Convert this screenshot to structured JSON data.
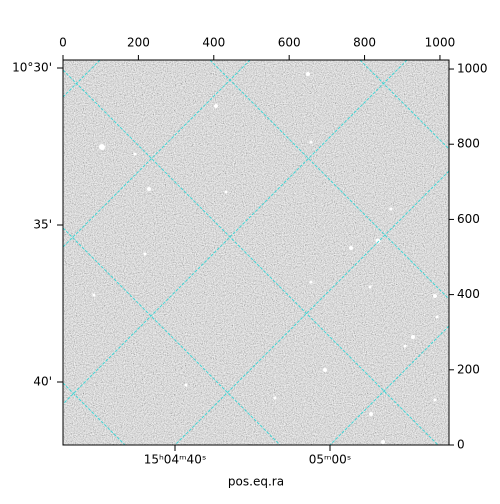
{
  "chart_data": {
    "type": "image",
    "xlabel": "pos.eq.ra",
    "xlim": [
      0,
      1024
    ],
    "xticks": [
      0,
      200,
      400,
      600,
      800,
      1000
    ],
    "ylim": [
      0,
      1024
    ],
    "yticks": [
      0,
      200,
      400,
      600,
      800,
      1000
    ],
    "ra_tick_labels": [
      "15ʰ04ᵐ40ˢ",
      "05ᵐ00ˢ"
    ],
    "dec_tick_labels": [
      "10°30'",
      "35'",
      "40'"
    ],
    "grid": true,
    "cmap": "gray"
  }
}
